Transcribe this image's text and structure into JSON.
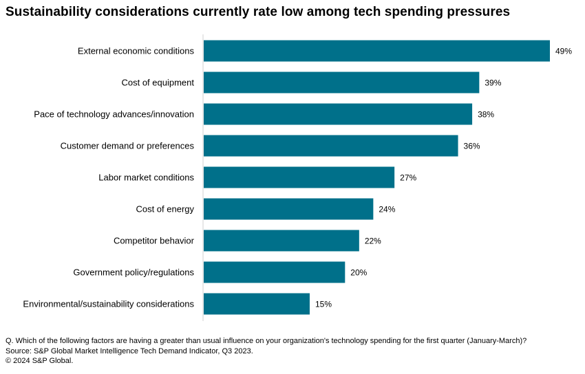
{
  "title": "Sustainability considerations currently rate low among tech spending pressures",
  "colors": {
    "bar": "#00708a",
    "axis": "#d0d0d0",
    "text": "#000000"
  },
  "chart_data": {
    "type": "bar",
    "orientation": "horizontal",
    "categories": [
      "External economic conditions",
      "Cost of equipment",
      "Pace of technology advances/innovation",
      "Customer demand or preferences",
      "Labor market conditions",
      "Cost of energy",
      "Competitor behavior",
      "Government policy/regulations",
      "Environmental/sustainability considerations"
    ],
    "values": [
      49,
      39,
      38,
      36,
      27,
      24,
      22,
      20,
      15
    ],
    "data_labels": [
      "49%",
      "39%",
      "38%",
      "36%",
      "27%",
      "24%",
      "22%",
      "20%",
      "15%"
    ],
    "unit": "%",
    "xlim": [
      0,
      49
    ],
    "grid": false,
    "legend": "none",
    "title": "Sustainability considerations currently rate low among tech spending pressures"
  },
  "footnotes": {
    "question": "Q. Which of the following factors are having a greater than usual influence on your organization's technology spending for the first quarter (January-March)?",
    "source": "Source: S&P Global Market Intelligence Tech Demand Indicator, Q3 2023.",
    "copyright": "© 2024 S&P Global."
  }
}
